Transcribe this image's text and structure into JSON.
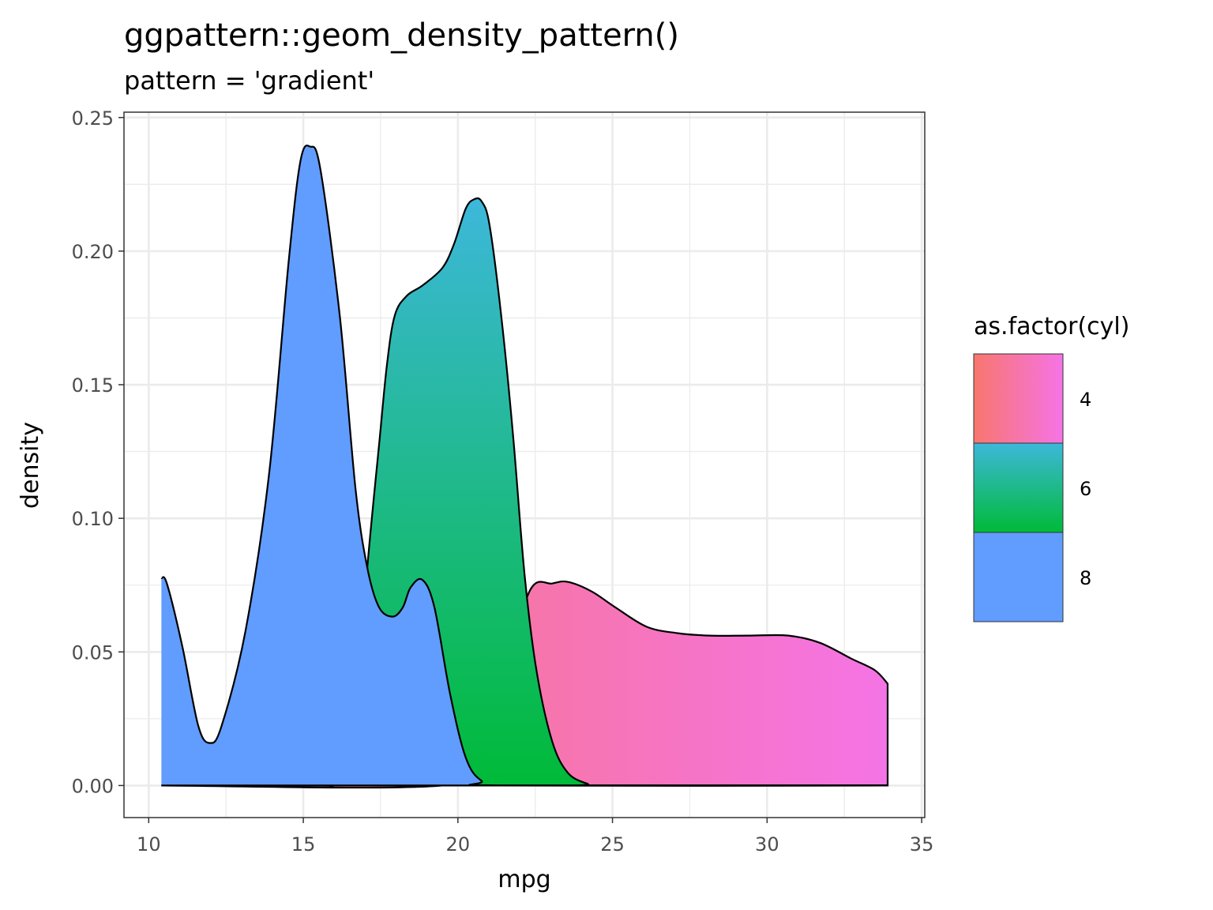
{
  "chart_data": {
    "type": "area",
    "title": "ggpattern::geom_density_pattern()",
    "subtitle": "pattern = 'gradient'",
    "xlabel": "mpg",
    "ylabel": "density",
    "xlim": [
      9.2,
      35.1
    ],
    "ylim": [
      -0.012,
      0.252
    ],
    "xticks": [
      10,
      15,
      20,
      25,
      30,
      35
    ],
    "xtick_labels": [
      "10",
      "15",
      "20",
      "25",
      "30",
      "35"
    ],
    "yticks": [
      0,
      0.05,
      0.1,
      0.15,
      0.2,
      0.25
    ],
    "ytick_labels": [
      "0.00",
      "0.05",
      "0.10",
      "0.15",
      "0.20",
      "0.25"
    ],
    "grid": true,
    "legend": {
      "title": "as.factor(cyl)",
      "placement": "right",
      "entries": [
        "4",
        "6",
        "8"
      ]
    },
    "series": [
      {
        "name": "4",
        "fill": "gradient-horizontal",
        "colors": [
          "#F8766D",
          "#F574E6"
        ],
        "x": [
          10.41,
          19.49,
          20.51,
          21.53,
          22.34,
          23.05,
          23.56,
          24.33,
          25.09,
          26.11,
          27.12,
          28.14,
          29.41,
          30.69,
          31.71,
          32.72,
          33.49,
          33.9
        ],
        "y": [
          0,
          0,
          0.0106,
          0.0431,
          0.0732,
          0.0756,
          0.0762,
          0.0726,
          0.0667,
          0.0594,
          0.057,
          0.0561,
          0.0561,
          0.0561,
          0.0534,
          0.0475,
          0.0431,
          0.0381
        ]
      },
      {
        "name": "6",
        "fill": "gradient-vertical",
        "colors": [
          "#00BA38",
          "#3DB8DA"
        ],
        "x": [
          10.41,
          15.42,
          15.93,
          16.56,
          16.82,
          17.07,
          17.46,
          17.71,
          17.96,
          18.35,
          18.85,
          19.49,
          19.87,
          20.25,
          20.51,
          20.76,
          21.02,
          21.4,
          21.78,
          22.16,
          22.54,
          23.05,
          23.56,
          24.2,
          24.58,
          33.9
        ],
        "y": [
          0,
          0,
          0.0006,
          0.0106,
          0.04,
          0.0815,
          0.1287,
          0.158,
          0.176,
          0.1833,
          0.1871,
          0.1936,
          0.2025,
          0.2158,
          0.2193,
          0.2187,
          0.2099,
          0.176,
          0.1316,
          0.0785,
          0.0431,
          0.0165,
          0.0047,
          0.0006,
          0,
          0
        ]
      },
      {
        "name": "8",
        "fill": "solid",
        "colors": [
          "#619CFF",
          "#619CFF"
        ],
        "x": [
          10.41,
          10.59,
          11.09,
          11.6,
          11.98,
          12.36,
          13.13,
          13.89,
          14.53,
          14.91,
          15.22,
          15.55,
          16.18,
          16.69,
          17.07,
          17.45,
          17.89,
          18.22,
          18.47,
          18.85,
          19.24,
          19.75,
          20.25,
          20.76,
          21.53,
          33.9
        ],
        "y": [
          0.0776,
          0.0755,
          0.0519,
          0.0224,
          0.0159,
          0.0224,
          0.0579,
          0.1163,
          0.1966,
          0.2338,
          0.2391,
          0.2308,
          0.1757,
          0.111,
          0.0815,
          0.0667,
          0.0632,
          0.0667,
          0.0741,
          0.077,
          0.0667,
          0.0342,
          0.0106,
          0.0018,
          0,
          0
        ]
      }
    ]
  }
}
